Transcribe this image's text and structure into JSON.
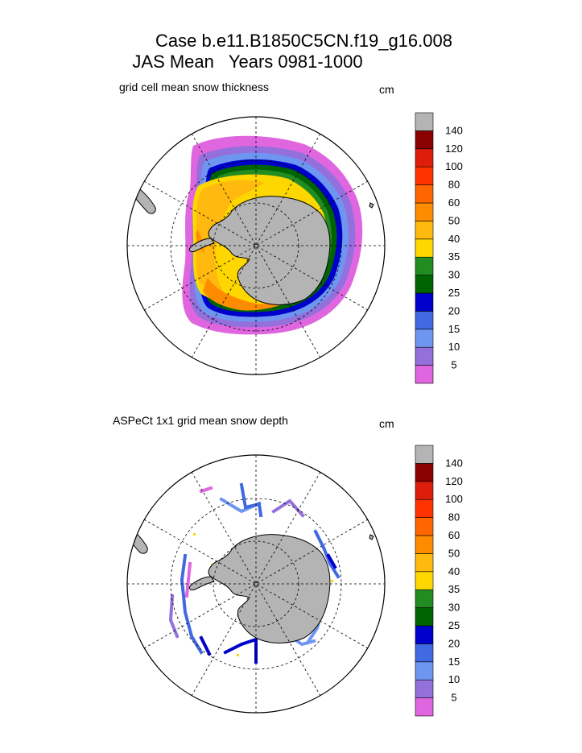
{
  "title_line1": "Case b.e11.B1850C5CN.f19_g16.008",
  "title_line2": "JAS Mean   Years 0981-1000",
  "colors": {
    "land": "#b4b4b4",
    "bins": [
      "#e066e0",
      "#9370db",
      "#6e96f0",
      "#4169e1",
      "#0000cd",
      "#006400",
      "#228b22",
      "#ffd700",
      "#ffb90f",
      "#ff8c00",
      "#ff6600",
      "#ff3300",
      "#dc1e0a",
      "#8b0000",
      "#b4b4b4"
    ]
  },
  "chart_data": [
    {
      "type": "heatmap",
      "projection": "south-polar-stereographic",
      "title": "grid cell mean snow thickness",
      "unit": "cm",
      "colorbar_levels": [
        5,
        10,
        15,
        20,
        25,
        30,
        35,
        40,
        50,
        60,
        80,
        100,
        120,
        140
      ],
      "grid": true
    },
    {
      "type": "heatmap",
      "projection": "south-polar-stereographic",
      "title": "ASPeCt 1x1 grid mean snow depth",
      "unit": "cm",
      "colorbar_levels": [
        5,
        10,
        15,
        20,
        25,
        30,
        35,
        40,
        50,
        60,
        80,
        100,
        120,
        140
      ],
      "grid": true
    }
  ]
}
